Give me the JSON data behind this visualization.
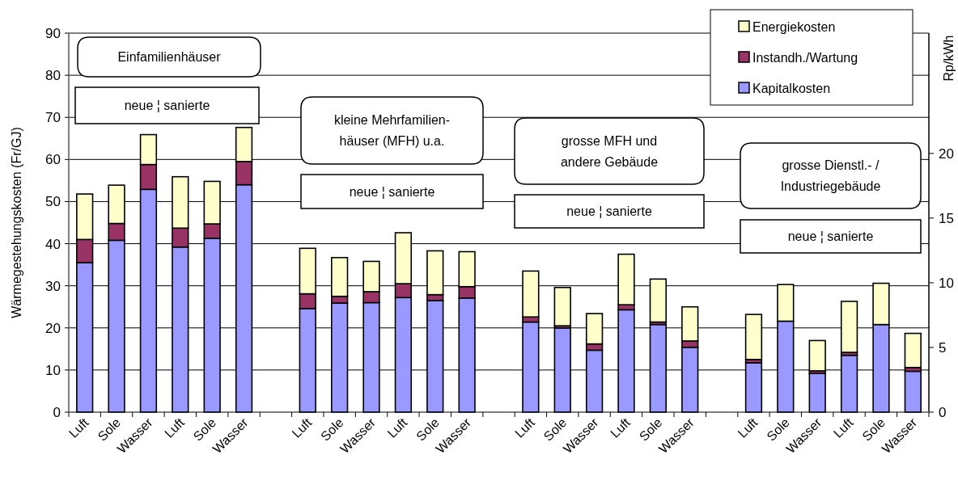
{
  "chart_data": {
    "type": "bar",
    "stacked": true,
    "ylabel": "Wärmegestehungskosten (Fr/GJ)",
    "y2label": "Rp/kWh",
    "categories": [
      "Luft",
      "Sole",
      "Wasser",
      "Luft",
      "Sole",
      "Wasser",
      null,
      "Luft",
      "Sole",
      "Wasser",
      "Luft",
      "Sole",
      "Wasser",
      null,
      "Luft",
      "Sole",
      "Wasser",
      "Luft",
      "Sole",
      "Wasser",
      null,
      "Luft",
      "Sole",
      "Wasser",
      "Luft",
      "Sole",
      "Wasser"
    ],
    "series": [
      {
        "name": "Kapitalkosten",
        "color": "#9999ff",
        "values": [
          35.5,
          40.8,
          52.9,
          39.2,
          41.3,
          54.0,
          null,
          24.6,
          25.9,
          26.0,
          27.2,
          26.5,
          27.1,
          null,
          21.4,
          20.0,
          14.7,
          24.3,
          20.8,
          15.4,
          null,
          11.7,
          21.6,
          9.2,
          13.5,
          20.8,
          9.7
        ]
      },
      {
        "name": "Instandh./Wartung",
        "color": "#993366",
        "values": [
          5.5,
          4.0,
          5.9,
          4.5,
          3.4,
          5.5,
          null,
          3.5,
          1.6,
          2.6,
          3.3,
          1.4,
          2.7,
          null,
          1.2,
          0.5,
          1.5,
          1.2,
          0.6,
          1.5,
          null,
          0.8,
          null,
          0.6,
          0.7,
          null,
          0.9
        ]
      },
      {
        "name": "Energiekosten",
        "color": "#ffffcc",
        "values": [
          10.8,
          9.1,
          7.1,
          12.2,
          10.1,
          8.1,
          null,
          10.8,
          9.2,
          7.2,
          12.1,
          10.4,
          8.3,
          null,
          10.9,
          9.1,
          7.2,
          12.0,
          10.2,
          8.1,
          null,
          10.7,
          8.7,
          7.2,
          12.1,
          9.8,
          8.1
        ]
      }
    ],
    "ylim": [
      0,
      90
    ],
    "yticks": [
      0,
      10,
      20,
      30,
      40,
      50,
      60,
      70,
      80,
      90
    ],
    "y2lim": [
      0,
      29.3
    ],
    "y2ticks": [
      0,
      5,
      10,
      15,
      20
    ],
    "grid": "y",
    "legend": "top right",
    "annotations": [
      "Einfamilienhäuser",
      "neue ¦ sanierte",
      "kleine Mehrfamilien-\nhäuser (MFH) u.a.",
      "neue ¦ sanierte",
      "grosse MFH und\nandere Gebäude",
      "neue ¦ sanierte",
      "grosse Dienstl.- /\nIndustriegebäude",
      "neue ¦ sanierte"
    ]
  }
}
